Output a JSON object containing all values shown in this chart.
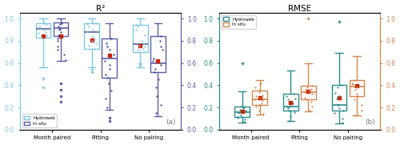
{
  "title_left": "R²",
  "title_right": "RMSE",
  "label_a": "(a)",
  "label_b": "(b)",
  "categories": [
    "Month paired",
    "Fitting",
    "No pairing"
  ],
  "hydroweb_color_left": "#7EC8E3",
  "insitu_color_left": "#5B5EA6",
  "hydroweb_color_right": "#2B8A8A",
  "insitu_color_right": "#D4874E",
  "mean_color": "#CC2200",
  "scatter_color_left_hw": "#7EC8E3",
  "scatter_color_left_is": "#3A3A9A",
  "scatter_color_right_hw": "#2B8A8A",
  "scatter_color_right_is": "#D4874E",
  "ylim_left": [
    0.0,
    1.05
  ],
  "ylim_right": [
    0.0,
    1.05
  ],
  "r2_hydroweb": {
    "month_paired": {
      "q1": 0.83,
      "median": 0.905,
      "q3": 0.955,
      "whislo": 0.56,
      "whishi": 1.0,
      "scatter": [
        0.83,
        0.85,
        0.88,
        0.9,
        0.91,
        0.92,
        0.93,
        0.95,
        0.955,
        0.84,
        0.87
      ],
      "outliers": [
        0.38,
        0.46
      ],
      "mean": 0.845
    },
    "fitting": {
      "q1": 0.73,
      "median": 0.88,
      "q3": 0.96,
      "whislo": 0.56,
      "whishi": 1.0,
      "scatter": [
        0.73,
        0.76,
        0.8,
        0.84,
        0.88,
        0.9,
        0.93,
        0.95,
        0.96,
        0.78,
        0.82
      ],
      "outliers": [
        0.52,
        0.54
      ],
      "mean": 0.805
    },
    "no_pairing": {
      "q1": 0.7,
      "median": 0.77,
      "q3": 0.945,
      "whislo": 0.56,
      "whishi": 1.0,
      "scatter": [
        0.7,
        0.73,
        0.75,
        0.78,
        0.8,
        0.85,
        0.9,
        0.93,
        0.945,
        0.72,
        0.76
      ],
      "outliers": [
        0.58,
        0.6
      ],
      "mean": 0.758
    }
  },
  "r2_insitu": {
    "month_paired": {
      "q1": 0.84,
      "median": 0.915,
      "q3": 0.965,
      "whislo": 0.62,
      "whishi": 1.0,
      "scatter": [
        0.63,
        0.68,
        0.72,
        0.75,
        0.8,
        0.84,
        0.88,
        0.91,
        0.93,
        0.96,
        0.82,
        0.85,
        0.9,
        0.95
      ],
      "outliers": [
        0.25,
        0.3,
        0.36,
        0.42
      ],
      "mean": 0.84
    },
    "fitting": {
      "q1": 0.47,
      "median": 0.64,
      "q3": 0.82,
      "whislo": 0.18,
      "whishi": 0.96,
      "scatter": [
        0.2,
        0.28,
        0.35,
        0.42,
        0.5,
        0.55,
        0.62,
        0.68,
        0.75,
        0.82,
        0.47,
        0.58,
        0.72,
        0.78
      ],
      "outliers": [
        0.08,
        0.11
      ],
      "mean": 0.67
    },
    "no_pairing": {
      "q1": 0.52,
      "median": 0.6,
      "q3": 0.84,
      "whislo": 0.12,
      "whishi": 0.96,
      "scatter": [
        0.15,
        0.22,
        0.3,
        0.38,
        0.45,
        0.52,
        0.58,
        0.64,
        0.72,
        0.84,
        0.55,
        0.62,
        0.75,
        0.8
      ],
      "outliers": [],
      "mean": 0.62
    }
  },
  "rmse_hydroweb": {
    "month_paired": {
      "q1": 0.115,
      "median": 0.155,
      "q3": 0.205,
      "whislo": 0.065,
      "whishi": 0.345,
      "scatter": [
        0.07,
        0.09,
        0.11,
        0.13,
        0.15,
        0.17,
        0.19,
        0.21,
        0.115,
        0.155,
        0.18,
        0.2,
        0.205
      ],
      "outliers": [
        0.595
      ],
      "mean": 0.165
    },
    "fitting": {
      "q1": 0.175,
      "median": 0.205,
      "q3": 0.32,
      "whislo": 0.075,
      "whishi": 0.535,
      "scatter": [
        0.08,
        0.12,
        0.16,
        0.19,
        0.21,
        0.24,
        0.27,
        0.3,
        0.175,
        0.205,
        0.28,
        0.32
      ],
      "outliers": [],
      "mean": 0.245
    },
    "no_pairing": {
      "q1": 0.175,
      "median": 0.225,
      "q3": 0.4,
      "whislo": 0.055,
      "whishi": 0.695,
      "scatter": [
        0.06,
        0.1,
        0.15,
        0.19,
        0.225,
        0.28,
        0.33,
        0.38,
        0.175,
        0.22,
        0.3,
        0.4
      ],
      "outliers": [
        0.975
      ],
      "mean": 0.29
    }
  },
  "rmse_insitu": {
    "month_paired": {
      "q1": 0.225,
      "median": 0.275,
      "q3": 0.355,
      "whislo": 0.135,
      "whishi": 0.445,
      "scatter": [
        0.14,
        0.17,
        0.21,
        0.24,
        0.265,
        0.285,
        0.31,
        0.335,
        0.355,
        0.225,
        0.275,
        0.3,
        0.38,
        0.42
      ],
      "outliers": [],
      "mean": 0.29
    },
    "fitting": {
      "q1": 0.275,
      "median": 0.34,
      "q3": 0.395,
      "whislo": 0.165,
      "whishi": 0.595,
      "scatter": [
        0.17,
        0.21,
        0.25,
        0.29,
        0.32,
        0.345,
        0.37,
        0.395,
        0.275,
        0.34,
        0.36,
        0.38
      ],
      "outliers": [
        1.0
      ],
      "mean": 0.345
    },
    "no_pairing": {
      "q1": 0.305,
      "median": 0.385,
      "q3": 0.445,
      "whislo": 0.125,
      "whishi": 0.665,
      "scatter": [
        0.13,
        0.17,
        0.22,
        0.27,
        0.32,
        0.36,
        0.39,
        0.42,
        0.305,
        0.385,
        0.41,
        0.445
      ],
      "outliers": [],
      "mean": 0.395
    }
  }
}
